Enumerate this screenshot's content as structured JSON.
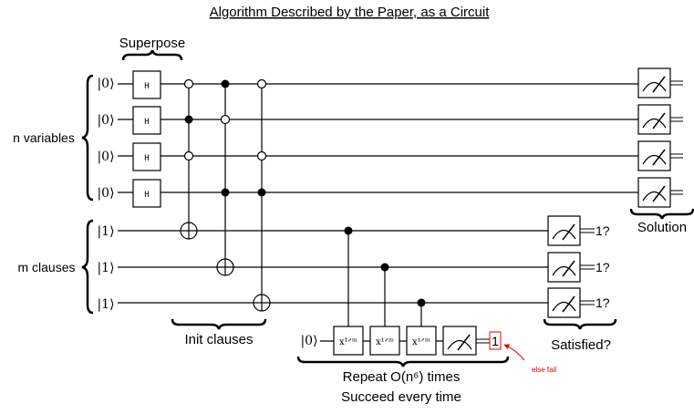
{
  "title": "Algorithm Described by the Paper, as a Circuit",
  "colors": {
    "ink": "#000000",
    "note_red": "#e00000",
    "background": "#ffffff"
  },
  "registers": {
    "variables": {
      "label": "n variables",
      "kets": [
        "|0⟩",
        "|0⟩",
        "|0⟩",
        "|0⟩"
      ]
    },
    "clauses": {
      "label": "m clauses",
      "kets": [
        "|1⟩",
        "|1⟩",
        "|1⟩"
      ]
    }
  },
  "stages": {
    "superpose": "Superpose",
    "init_clauses": "Init clauses",
    "repeat_line1": "Repeat O(n⁶) times",
    "repeat_line2": "Succeed every time",
    "satisfied": "Satisfied?",
    "solution": "Solution"
  },
  "gates": {
    "hadamard": "H",
    "root_x": "x¹ᐟᵐ",
    "icons": [
      "measurement-meter-icon",
      "control-dot-icon",
      "target-plus-icon"
    ]
  },
  "ancilla": {
    "ket": "|0⟩",
    "result": "1",
    "fail_note": "else fail"
  },
  "clause_results": [
    "1?",
    "1?",
    "1?"
  ]
}
